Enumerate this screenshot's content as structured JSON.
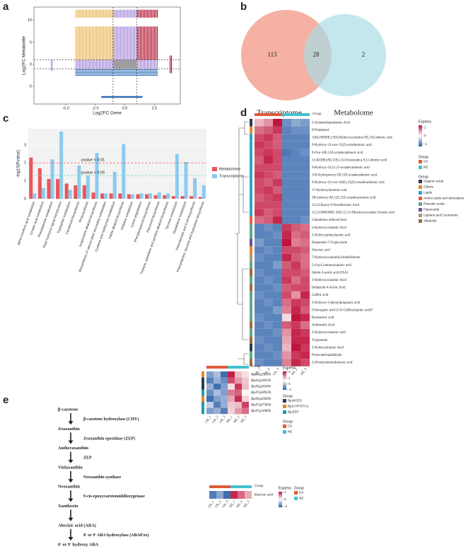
{
  "panel_labels": [
    "a",
    "b",
    "c",
    "d",
    "e"
  ],
  "scatter_a": {
    "xlabel": "Log2FC Gene",
    "ylabel": "Log2FC Metabolite",
    "xlim": [
      -7.7,
      4.7
    ],
    "ylim": [
      -9,
      13
    ],
    "xticks": [
      {
        "value": -5,
        "label": "-5.0"
      },
      {
        "value": -2.5,
        "label": "-2.5"
      },
      {
        "value": 0,
        "label": "0.0"
      },
      {
        "value": 2.5,
        "label": "2.5"
      }
    ],
    "yticks": [
      -5,
      0,
      5,
      10
    ],
    "thresholds": [
      -1,
      1
    ]
  },
  "venn": {
    "sets": [
      {
        "name": "Transcriptome",
        "color": "#f4a99a"
      },
      {
        "name": "Metabolome",
        "color": "#a9dde6"
      }
    ],
    "counts": [
      113,
      28,
      2
    ]
  },
  "bar_c": {
    "ylabel": "-log10(Pvalue)",
    "ylim": [
      0,
      3.9
    ],
    "yticks": [
      0,
      1,
      2,
      3
    ],
    "categories": [
      "alpha-Linolenic acid metabolism",
      "Linoleic acid metabolism",
      "Phenylalanine metabolism",
      "Plant hormone signal transduction",
      "Tryptophan metabolism",
      "Carotenoid biosynthesis",
      "Photosynthesis",
      "Isoquinoline alkaloid biosynthesis",
      "Biosynthesis of various plant secondary metabolites",
      "Cysteine and methionine metabolism",
      "Indole alkaloid biosynthesis",
      "Histidine metabolism",
      "Lysine degradation",
      "Phenylpropanoid biosynthesis",
      "Flavonoid biosynthesis",
      "Tropane, piperidine and pyridine alkaloid biosynthesis",
      "Tyrosine metabolism",
      "Glutathione metabolism",
      "Pantothenate and CoA biosynthesis",
      "Phenylalanine, tyrosine and tryptophan biosynthesis"
    ],
    "series": [
      {
        "name": "Metabolome",
        "color": "#e8575a",
        "values": [
          2.3,
          1.7,
          1.1,
          1.1,
          0.85,
          0.75,
          0.75,
          0.35,
          0.3,
          0.3,
          0.3,
          0.25,
          0.25,
          0.25,
          0.2,
          0.2,
          0.15,
          0.15,
          0.15,
          0.1
        ]
      },
      {
        "name": "Transcriptome",
        "color": "#8ccbee",
        "values": [
          0.3,
          0.6,
          2.2,
          3.75,
          0.5,
          1.85,
          1.3,
          2.55,
          0.3,
          1.5,
          3.05,
          0.25,
          0.3,
          0.3,
          0.35,
          0.3,
          2.5,
          2.05,
          1.15,
          0.75
        ]
      }
    ],
    "lines": [
      {
        "label": "pvalue < 0.01",
        "value": 2,
        "color": "#e8575a"
      },
      {
        "label": "pvalue < 0.05",
        "value": 1.3,
        "color": "#7fd3c0"
      }
    ]
  },
  "heatmap_d": {
    "columns": [
      "CK_1",
      "CK_2",
      "CK_3",
      "NE_1",
      "NE_2",
      "NE_3"
    ],
    "column_group": [
      "CK",
      "CK",
      "CK",
      "NE",
      "NE",
      "NE"
    ],
    "top_group_label": "Group",
    "bottom_group_label": "Group",
    "zlim": [
      -1.3,
      1.3
    ],
    "legend_title": "Express",
    "legend_ticks": [
      1,
      0,
      -1
    ],
    "sample_group_title": "Group",
    "sample_groups": [
      {
        "name": "CK",
        "color": "#e05a3a"
      },
      {
        "name": "NE",
        "color": "#43c1cf"
      }
    ],
    "class_title": "Group",
    "classes": [
      {
        "name": "Organic acids",
        "color": "#2b3a55"
      },
      {
        "name": "Others",
        "color": "#e6862a"
      },
      {
        "name": "Lipids",
        "color": "#2aa6c9"
      },
      {
        "name": "Amino acids and derivatives",
        "color": "#e8603c"
      },
      {
        "name": "Phenolic acids",
        "color": "#5fa98c"
      },
      {
        "name": "Flavonoids",
        "color": "#6b4f9e"
      },
      {
        "name": "Lignans and Coumarins",
        "color": "#a89a7a"
      },
      {
        "name": "Alkaloids",
        "color": "#9c6b3f"
      }
    ],
    "rows": [
      "5-Acetamidopentanoic Acid",
      "D-Panthenol",
      "13(S)-HODE;13(S)-Hydroxyoctadeca-9Z,11E-dienoic acid",
      "9-Hydroxy-12-oxo-15(Z)-octadecenoic acid",
      "9-Oxo-10E,12Z-octadecadienoic acid",
      "13-KODE;(9Z,11E)-13-Oxooctadeca-9,11-dienoic acid",
      "9-Hydroxy-10,12,15-octadecatrienoic acid",
      "13S-Hydroperoxy-9Z,11E-octadecadienoic acid",
      "9-Hydroxy-12-oxo-10(E),15(Z)-octadecadienoic acid",
      "17-Hydroxylinolenic acid",
      "2R-hydroxy-9Z,12Z,15Z-octadecatrienoic acid",
      "12,13-Epoxy-9-Octadecenoic Acid",
      "12,13-DiHOME; (9Z)-12,13-Dihydroxyoctadec-9-enoic acid",
      "Glutathione reduced form",
      "o-Hydroxycinnamic Acid",
      "2-Hydroxyphenylacetic acid",
      "Hesperetin-7-O-glucoside",
      "Abscisic acid",
      "7-Hydroxycoumarin;Umbelliferone",
      "5-O-p-Coumaroylquinic acid",
      "Indole-3-acetic acid (IAA)",
      "3-Hydroxycinnamic Acid",
      "Imidazole-4-Acetic Acid",
      "Caffeic acid",
      "2-Hydroxy-3-phenylpropanoic acid",
      "Chlorogenic acid (3-O-Caffeoylquinic acid)*",
      "Rosmarinic acid",
      "Anthranilic Acid",
      "2-Hydroxycinnamic acid",
      "Tryptamine",
      "2-Hydroxybutyric Acid",
      "Protocatechualdehyde",
      "2-(Formylamino)benzoic acid"
    ],
    "row_class": [
      "Organic acids",
      "Others",
      "Lipids",
      "Lipids",
      "Lipids",
      "Lipids",
      "Lipids",
      "Lipids",
      "Lipids",
      "Lipids",
      "Lipids",
      "Lipids",
      "Lipids",
      "Amino acids and derivatives",
      "Phenolic acids",
      "Phenolic acids",
      "Flavonoids",
      "Others",
      "Lignans and Coumarins",
      "Phenolic acids",
      "Alkaloids",
      "Phenolic acids",
      "Alkaloids",
      "Phenolic acids",
      "Phenolic acids",
      "Phenolic acids",
      "Phenolic acids",
      "Alkaloids",
      "Phenolic acids",
      "Alkaloids",
      "Organic acids",
      "Phenolic acids",
      "Alkaloids"
    ],
    "values": [
      [
        0.4,
        0.6,
        1.3,
        -0.9,
        -0.7,
        -0.8
      ],
      [
        0.8,
        0.9,
        1.1,
        -1,
        -0.9,
        -0.9
      ],
      [
        1,
        1.1,
        0.9,
        -1,
        -1,
        -1
      ],
      [
        1.1,
        1,
        0.9,
        -1,
        -1,
        -1
      ],
      [
        1,
        1.1,
        1,
        -1.1,
        -1,
        -0.9
      ],
      [
        0.9,
        1.2,
        1,
        -1,
        -1,
        -1
      ],
      [
        1,
        1,
        1,
        -1,
        -1,
        -1
      ],
      [
        1.1,
        1,
        0.9,
        -1,
        -1,
        -1
      ],
      [
        1,
        0.9,
        1.1,
        -1,
        -1,
        -1
      ],
      [
        1,
        1.1,
        0.9,
        -1,
        -1,
        -1
      ],
      [
        0.9,
        1,
        1.1,
        -1,
        -1,
        -1
      ],
      [
        1,
        1,
        1,
        -1,
        -1,
        -1
      ],
      [
        1.1,
        0.9,
        1,
        -1,
        -1,
        -1
      ],
      [
        0.8,
        0.9,
        1.2,
        -1,
        -1,
        -0.9
      ],
      [
        -1,
        -0.9,
        -1,
        1.1,
        0.9,
        0.8
      ],
      [
        -1,
        -1,
        -0.9,
        1.2,
        0.8,
        0.9
      ],
      [
        -0.8,
        -1,
        -1,
        1.3,
        0.7,
        0.8
      ],
      [
        -1,
        -0.9,
        -1,
        1,
        1,
        0.9
      ],
      [
        -0.9,
        -1,
        -1,
        1.2,
        0.9,
        0.8
      ],
      [
        -1,
        -1,
        -0.8,
        0.9,
        1.1,
        0.8
      ],
      [
        -0.9,
        -1,
        -1,
        1,
        1,
        0.9
      ],
      [
        -1,
        -0.9,
        -1,
        1.1,
        0.8,
        1
      ],
      [
        -1,
        -1,
        -0.9,
        0.9,
        1,
        1
      ],
      [
        -0.9,
        -1,
        -1,
        1,
        0.6,
        1.2
      ],
      [
        -1,
        -0.9,
        -1,
        0.8,
        1.1,
        1
      ],
      [
        -1,
        -1,
        -0.8,
        0.7,
        1.2,
        0.9
      ],
      [
        -0.9,
        -1,
        -1,
        0.2,
        1.3,
        1.2
      ],
      [
        -1,
        -0.9,
        -1,
        0.9,
        1.1,
        0.8
      ],
      [
        -1,
        -1,
        -0.9,
        0.6,
        1.2,
        1.1
      ],
      [
        -0.9,
        -1,
        -1,
        0.5,
        1.2,
        1.2
      ],
      [
        -1,
        -0.9,
        -1,
        0.4,
        1.3,
        1.1
      ],
      [
        -1,
        -1,
        -0.9,
        0.6,
        1.1,
        1.2
      ],
      [
        -0.9,
        -1,
        -1,
        0.7,
        1.2,
        1
      ]
    ]
  },
  "pathway": {
    "compounds": [
      "β-carotene",
      "Zeaxanthin",
      "Antheraxanthin",
      "Violaxanthin",
      "Neoxanthin",
      "Xanthoxin",
      "Abscisic acid (ABA)",
      "8' or 9' hydroxy ABA"
    ],
    "enzymes": [
      "β-carotene hydroxylase (CHY)",
      "Zeaxanthin epoxidase (ZEP)",
      "ZEP",
      "Neoxanthin synthase",
      "9-cis-epoxycarotenoiddioxygenase",
      "8' or 9' ABA hydroxylase (ABA8'ox)"
    ],
    "enzyme_after": [
      0,
      1,
      2,
      3,
      4,
      6
    ]
  },
  "heatmap_e": {
    "columns": [
      "CK_1",
      "CK_2",
      "CK_3",
      "NE_1",
      "NE_2",
      "NE_3"
    ],
    "column_group": [
      "CK",
      "CK",
      "CK",
      "NE",
      "NE",
      "NE"
    ],
    "top_group_label": "Group",
    "zlim": [
      -1,
      2.1
    ],
    "legend_title": "Express",
    "legend_ticks": [
      2,
      1,
      0,
      -1
    ],
    "class_title": "Group",
    "classes": [
      {
        "name": "BjuNCED",
        "color": "#2b3a55"
      },
      {
        "name": "BjuCYP707A1",
        "color": "#e6862a"
      },
      {
        "name": "BjuZEP",
        "color": "#1b9bb0"
      }
    ],
    "sample_group_title": "Group",
    "sample_groups": [
      {
        "name": "CK",
        "color": "#e05a3a"
      },
      {
        "name": "NE",
        "color": "#43c1cf"
      }
    ],
    "rows": [
      "Bju04g29190S",
      "Bju01g34620S",
      "Bju09g28340S",
      "Bju07g38950S",
      "Bju06g43000S",
      "Bju07g07380S",
      "Bju07g14460S"
    ],
    "row_class": [
      "BjuCYP707A1",
      "BjuNCED",
      "BjuNCED",
      "BjuZEP",
      "BjuCYP707A1",
      "BjuZEP",
      "BjuZEP"
    ],
    "values": [
      [
        -0.6,
        -0.4,
        -0.9,
        2,
        0.6,
        0.3
      ],
      [
        -0.8,
        -0.5,
        -0.7,
        1.6,
        0.9,
        0.5
      ],
      [
        -0.5,
        -0.9,
        -0.6,
        0.3,
        1.8,
        0.6
      ],
      [
        -0.7,
        -0.4,
        -0.6,
        1.2,
        1.4,
        0.1
      ],
      [
        -0.9,
        -0.6,
        -0.5,
        0.8,
        1.9,
        0.4
      ],
      [
        -0.3,
        -0.8,
        -0.5,
        0.5,
        0.6,
        1.7
      ],
      [
        -0.6,
        -0.5,
        -0.8,
        0.4,
        0.9,
        1.3
      ]
    ]
  },
  "heatmap_aba": {
    "columns": [
      "CK_1",
      "CK_2",
      "CK_3",
      "NE_1",
      "NE_2",
      "NE_3"
    ],
    "column_group": [
      "CK",
      "CK",
      "CK",
      "NE",
      "NE",
      "NE"
    ],
    "top_group_label": "Group",
    "zlim": [
      -1.1,
      1.1
    ],
    "legend_title": "Express",
    "legend_ticks": [
      1,
      0,
      -1
    ],
    "sample_group_title": "Group",
    "sample_groups": [
      {
        "name": "CK",
        "color": "#e05a3a"
      },
      {
        "name": "NE",
        "color": "#43c1cf"
      }
    ],
    "rows": [
      "Abscisic acid"
    ],
    "values": [
      [
        -0.9,
        -0.6,
        -1,
        1,
        0.7,
        0.4
      ]
    ]
  }
}
